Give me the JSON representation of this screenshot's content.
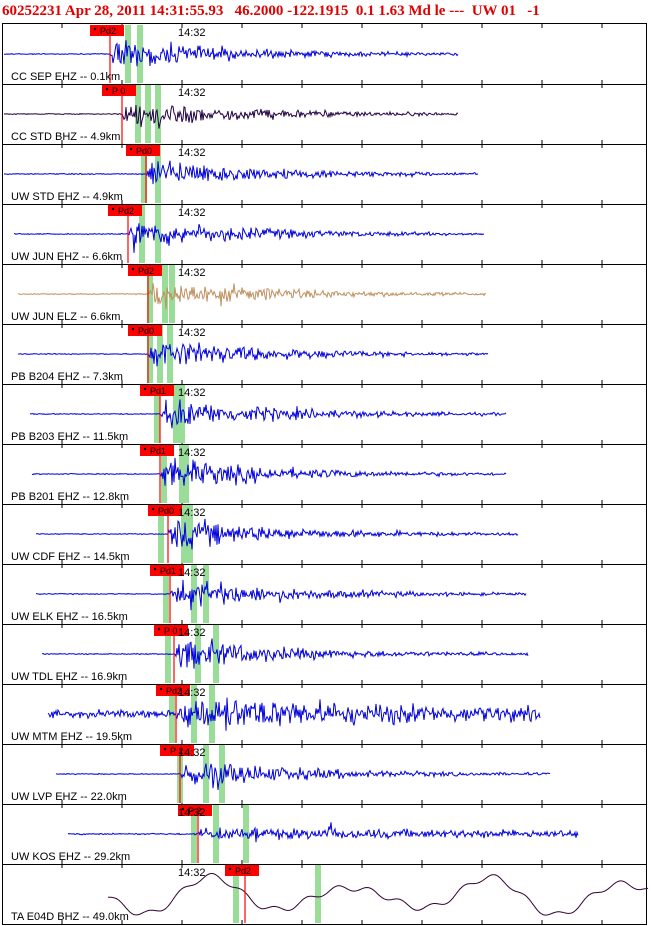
{
  "header": {
    "text": "60252231 Apr 28, 2011 14:31:55.93   46.2000 -122.1915  0.1 1.63 Md le ---  UW 01   -1"
  },
  "colors": {
    "header_text": "#e00000",
    "trace_blue": "#0000dd",
    "trace_dark": "#220044",
    "trace_tan": "#c09060",
    "trace_purple": "#330033",
    "pick_box": "#ff0000",
    "pick_line": "#ff0000",
    "phase_green": "#99dd99",
    "frame": "#000000"
  },
  "time_mark_label": "14:32",
  "traces": [
    {
      "station": "CC SEP EHZ -- 0.1km",
      "pick": "Pd2",
      "color": "blue",
      "style": "burst"
    },
    {
      "station": "CC STD BHZ -- 4.9km",
      "pick": "P 0",
      "color": "dark",
      "style": "burst"
    },
    {
      "station": "UW STD EHZ -- 4.9km",
      "pick": "Pd0",
      "color": "blue",
      "style": "burst"
    },
    {
      "station": "UW JUN EHZ -- 6.6km",
      "pick": "Pd2",
      "color": "blue",
      "style": "burst"
    },
    {
      "station": "UW JUN ELZ -- 6.6km",
      "pick": "Pd2",
      "color": "tan",
      "style": "burst"
    },
    {
      "station": "PB B204 EHZ -- 7.3km",
      "pick": "Pd0",
      "color": "blue",
      "style": "burst"
    },
    {
      "station": "PB B203 EHZ -- 11.5km",
      "pick": "Pd1",
      "color": "blue",
      "style": "burst"
    },
    {
      "station": "PB B201 EHZ -- 12.8km",
      "pick": "Pd1",
      "color": "blue",
      "style": "burst"
    },
    {
      "station": "UW CDF EHZ -- 14.5km",
      "pick": "Pd0",
      "color": "blue",
      "style": "burst"
    },
    {
      "station": "UW ELK EHZ -- 16.5km",
      "pick": "Pd1",
      "color": "blue",
      "style": "burst"
    },
    {
      "station": "UW TDL EHZ -- 16.9km",
      "pick": "P 0",
      "color": "blue",
      "style": "burst"
    },
    {
      "station": "UW MTM EHZ -- 19.5km",
      "pick": "Pd2",
      "color": "blue",
      "style": "noisy"
    },
    {
      "station": "UW LVP EHZ -- 22.0km",
      "pick": "P 2",
      "color": "blue",
      "style": "burst"
    },
    {
      "station": "UW KOS EHZ -- 29.2km",
      "pick": "P 2",
      "color": "blue",
      "style": "spiky"
    },
    {
      "station": "TA E04D BHZ -- 49.0km",
      "pick": "Pd2",
      "color": "purple",
      "style": "longperiod"
    }
  ]
}
